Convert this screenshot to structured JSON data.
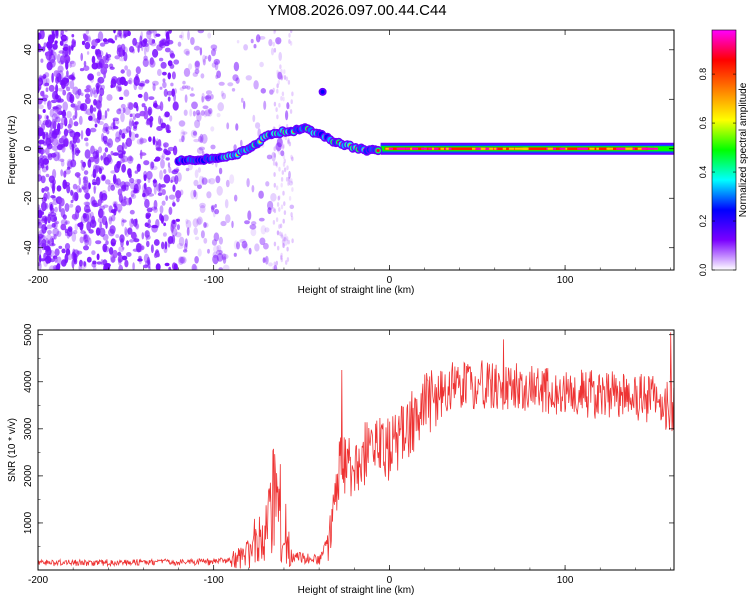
{
  "title": "YM08.2026.097.00.44.C44",
  "chart_data": [
    {
      "type": "heatmap",
      "name": "spectrogram",
      "xlabel": "Height of straight line (km)",
      "ylabel": "Frequency (Hz)",
      "xlim": [
        -200,
        162
      ],
      "ylim": [
        -49,
        48
      ],
      "x_ticks": [
        -200,
        -100,
        0,
        100
      ],
      "y_ticks": [
        -40,
        -20,
        0,
        20,
        40
      ],
      "colorbar": {
        "label": "Normalized spectral amplitude",
        "range": [
          0.0,
          0.98
        ],
        "ticks": [
          "0.0",
          "0.2",
          "0.4",
          "0.6",
          "0.8"
        ],
        "colors": [
          "#ffffff",
          "#7a00ff",
          "#0000ff",
          "#00ffff",
          "#00ff00",
          "#ffff00",
          "#ff8000",
          "#ff0000",
          "#ff00ff"
        ]
      },
      "noise_region_km": [
        -200,
        -55
      ],
      "carrier": {
        "frequency_hz": 0,
        "strong_from_km": -5,
        "to_km": 162,
        "peak_amplitude": 0.95
      },
      "signal_track": [
        {
          "x": -120,
          "f": -5
        },
        {
          "x": -100,
          "f": -4
        },
        {
          "x": -90,
          "f": -3
        },
        {
          "x": -80,
          "f": 0
        },
        {
          "x": -70,
          "f": 5
        },
        {
          "x": -60,
          "f": 7
        },
        {
          "x": -48,
          "f": 8
        },
        {
          "x": -40,
          "f": 6
        },
        {
          "x": -32,
          "f": 3
        },
        {
          "x": -22,
          "f": 1
        },
        {
          "x": -12,
          "f": -1
        },
        {
          "x": -5,
          "f": 0
        },
        {
          "x": 162,
          "f": 0
        }
      ],
      "isolated_blob": {
        "x": -38,
        "f": 23
      }
    },
    {
      "type": "line",
      "name": "snr",
      "xlabel": "Height of straight line (km)",
      "ylabel": "SNR (10 * v/v)",
      "xlim": [
        -200,
        162
      ],
      "ylim": [
        0,
        5100
      ],
      "x_ticks": [
        -200,
        -100,
        0,
        100
      ],
      "y_ticks": [
        1000,
        2000,
        3000,
        4000,
        5000
      ],
      "line_color": "#ee3333",
      "series_control_points": [
        {
          "x": -200,
          "y": 150
        },
        {
          "x": -100,
          "y": 170
        },
        {
          "x": -88,
          "y": 220
        },
        {
          "x": -80,
          "y": 350
        },
        {
          "x": -72,
          "y": 600
        },
        {
          "x": -66,
          "y": 1500
        },
        {
          "x": -62,
          "y": 900
        },
        {
          "x": -55,
          "y": 300
        },
        {
          "x": -40,
          "y": 200
        },
        {
          "x": -33,
          "y": 800
        },
        {
          "x": -28,
          "y": 2200
        },
        {
          "x": -20,
          "y": 2200
        },
        {
          "x": -10,
          "y": 2600
        },
        {
          "x": 0,
          "y": 2600
        },
        {
          "x": 10,
          "y": 3000
        },
        {
          "x": 20,
          "y": 3500
        },
        {
          "x": 35,
          "y": 3900
        },
        {
          "x": 50,
          "y": 3950
        },
        {
          "x": 70,
          "y": 3900
        },
        {
          "x": 90,
          "y": 3800
        },
        {
          "x": 110,
          "y": 3750
        },
        {
          "x": 130,
          "y": 3700
        },
        {
          "x": 150,
          "y": 3650
        },
        {
          "x": 162,
          "y": 3400
        }
      ],
      "notable_peaks": [
        {
          "x": -62,
          "y": 2250
        },
        {
          "x": -27,
          "y": 4250
        },
        {
          "x": 65,
          "y": 4900
        },
        {
          "x": 160,
          "y": 5050
        }
      ]
    }
  ]
}
